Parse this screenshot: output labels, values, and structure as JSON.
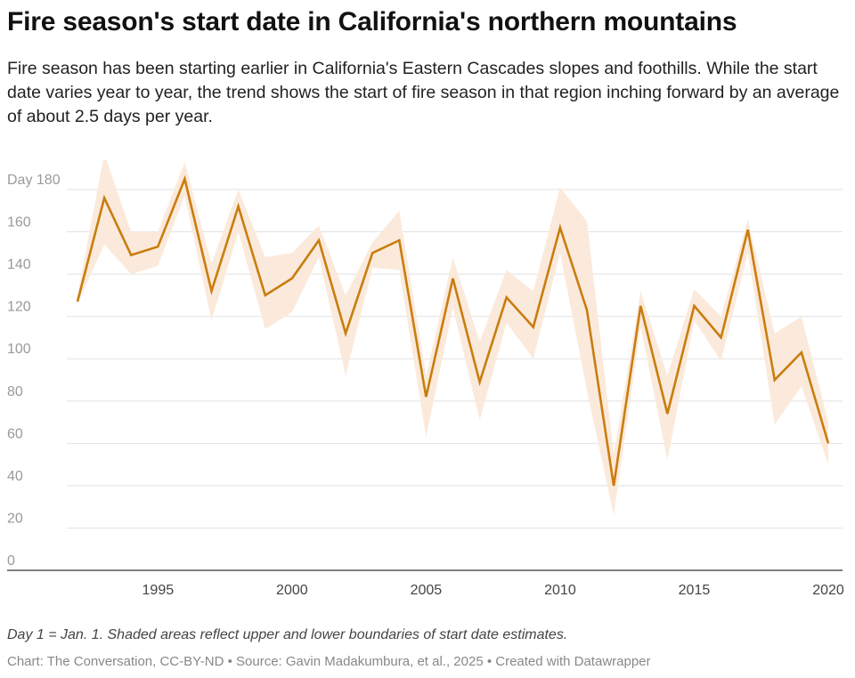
{
  "header": {
    "title": "Fire season's start date in California's northern mountains",
    "subtitle": "Fire season has been starting earlier in California's Eastern Cascades slopes and foothills. While the start date varies year to year, the trend shows the start of fire season in that region inching forward by an average of about 2.5 days per year."
  },
  "footer": {
    "note": "Day 1 = Jan. 1. Shaded areas reflect upper and lower boundaries of start date estimates.",
    "credit": "Chart: The Conversation, CC-BY-ND • Source: Gavin Madakumbura, et al., 2025 • Created with Datawrapper"
  },
  "colors": {
    "line": "#c97d0f",
    "band": "#fbeadb",
    "grid": "#e2e2e2",
    "axis": "#333333",
    "tick_text": "#444444"
  },
  "chart_data": {
    "type": "line",
    "title": "Fire season's start date in California's northern mountains",
    "ylim": [
      0,
      180
    ],
    "yticks": [
      0,
      20,
      40,
      60,
      80,
      100,
      120,
      140,
      160,
      180
    ],
    "ytick_labels": [
      "0",
      "20",
      "40",
      "60",
      "80",
      "100",
      "120",
      "140",
      "160",
      "Day 180"
    ],
    "xlim": [
      1991,
      2021
    ],
    "xticks": [
      1995,
      2000,
      2005,
      2010,
      2015,
      2020
    ],
    "xtick_labels": [
      "1995",
      "2000",
      "2005",
      "2010",
      "2015",
      "2020"
    ],
    "x": [
      1992,
      1993,
      1994,
      1995,
      1996,
      1997,
      1998,
      1999,
      2000,
      2001,
      2002,
      2003,
      2004,
      2005,
      2006,
      2007,
      2008,
      2009,
      2010,
      2011,
      2012,
      2013,
      2014,
      2015,
      2016,
      2017,
      2018,
      2019,
      2020
    ],
    "series": [
      {
        "values": [
          127,
          176,
          149,
          153,
          185,
          132,
          172,
          130,
          138,
          156,
          112,
          150,
          156,
          82,
          138,
          89,
          129,
          115,
          162,
          123,
          40,
          125,
          74,
          125,
          110,
          161,
          90,
          103,
          60
        ]
      }
    ],
    "band_upper": [
      130,
      197,
      160,
      160,
      193,
      145,
      180,
      148,
      150,
      163,
      130,
      155,
      170,
      92,
      148,
      108,
      142,
      132,
      181,
      165,
      55,
      132,
      92,
      133,
      120,
      166,
      112,
      120,
      70
    ],
    "band_lower": [
      126,
      154,
      140,
      144,
      177,
      118,
      160,
      114,
      122,
      148,
      92,
      143,
      142,
      63,
      124,
      71,
      117,
      100,
      150,
      85,
      26,
      115,
      52,
      118,
      99,
      150,
      69,
      87,
      50
    ],
    "grid": true
  }
}
